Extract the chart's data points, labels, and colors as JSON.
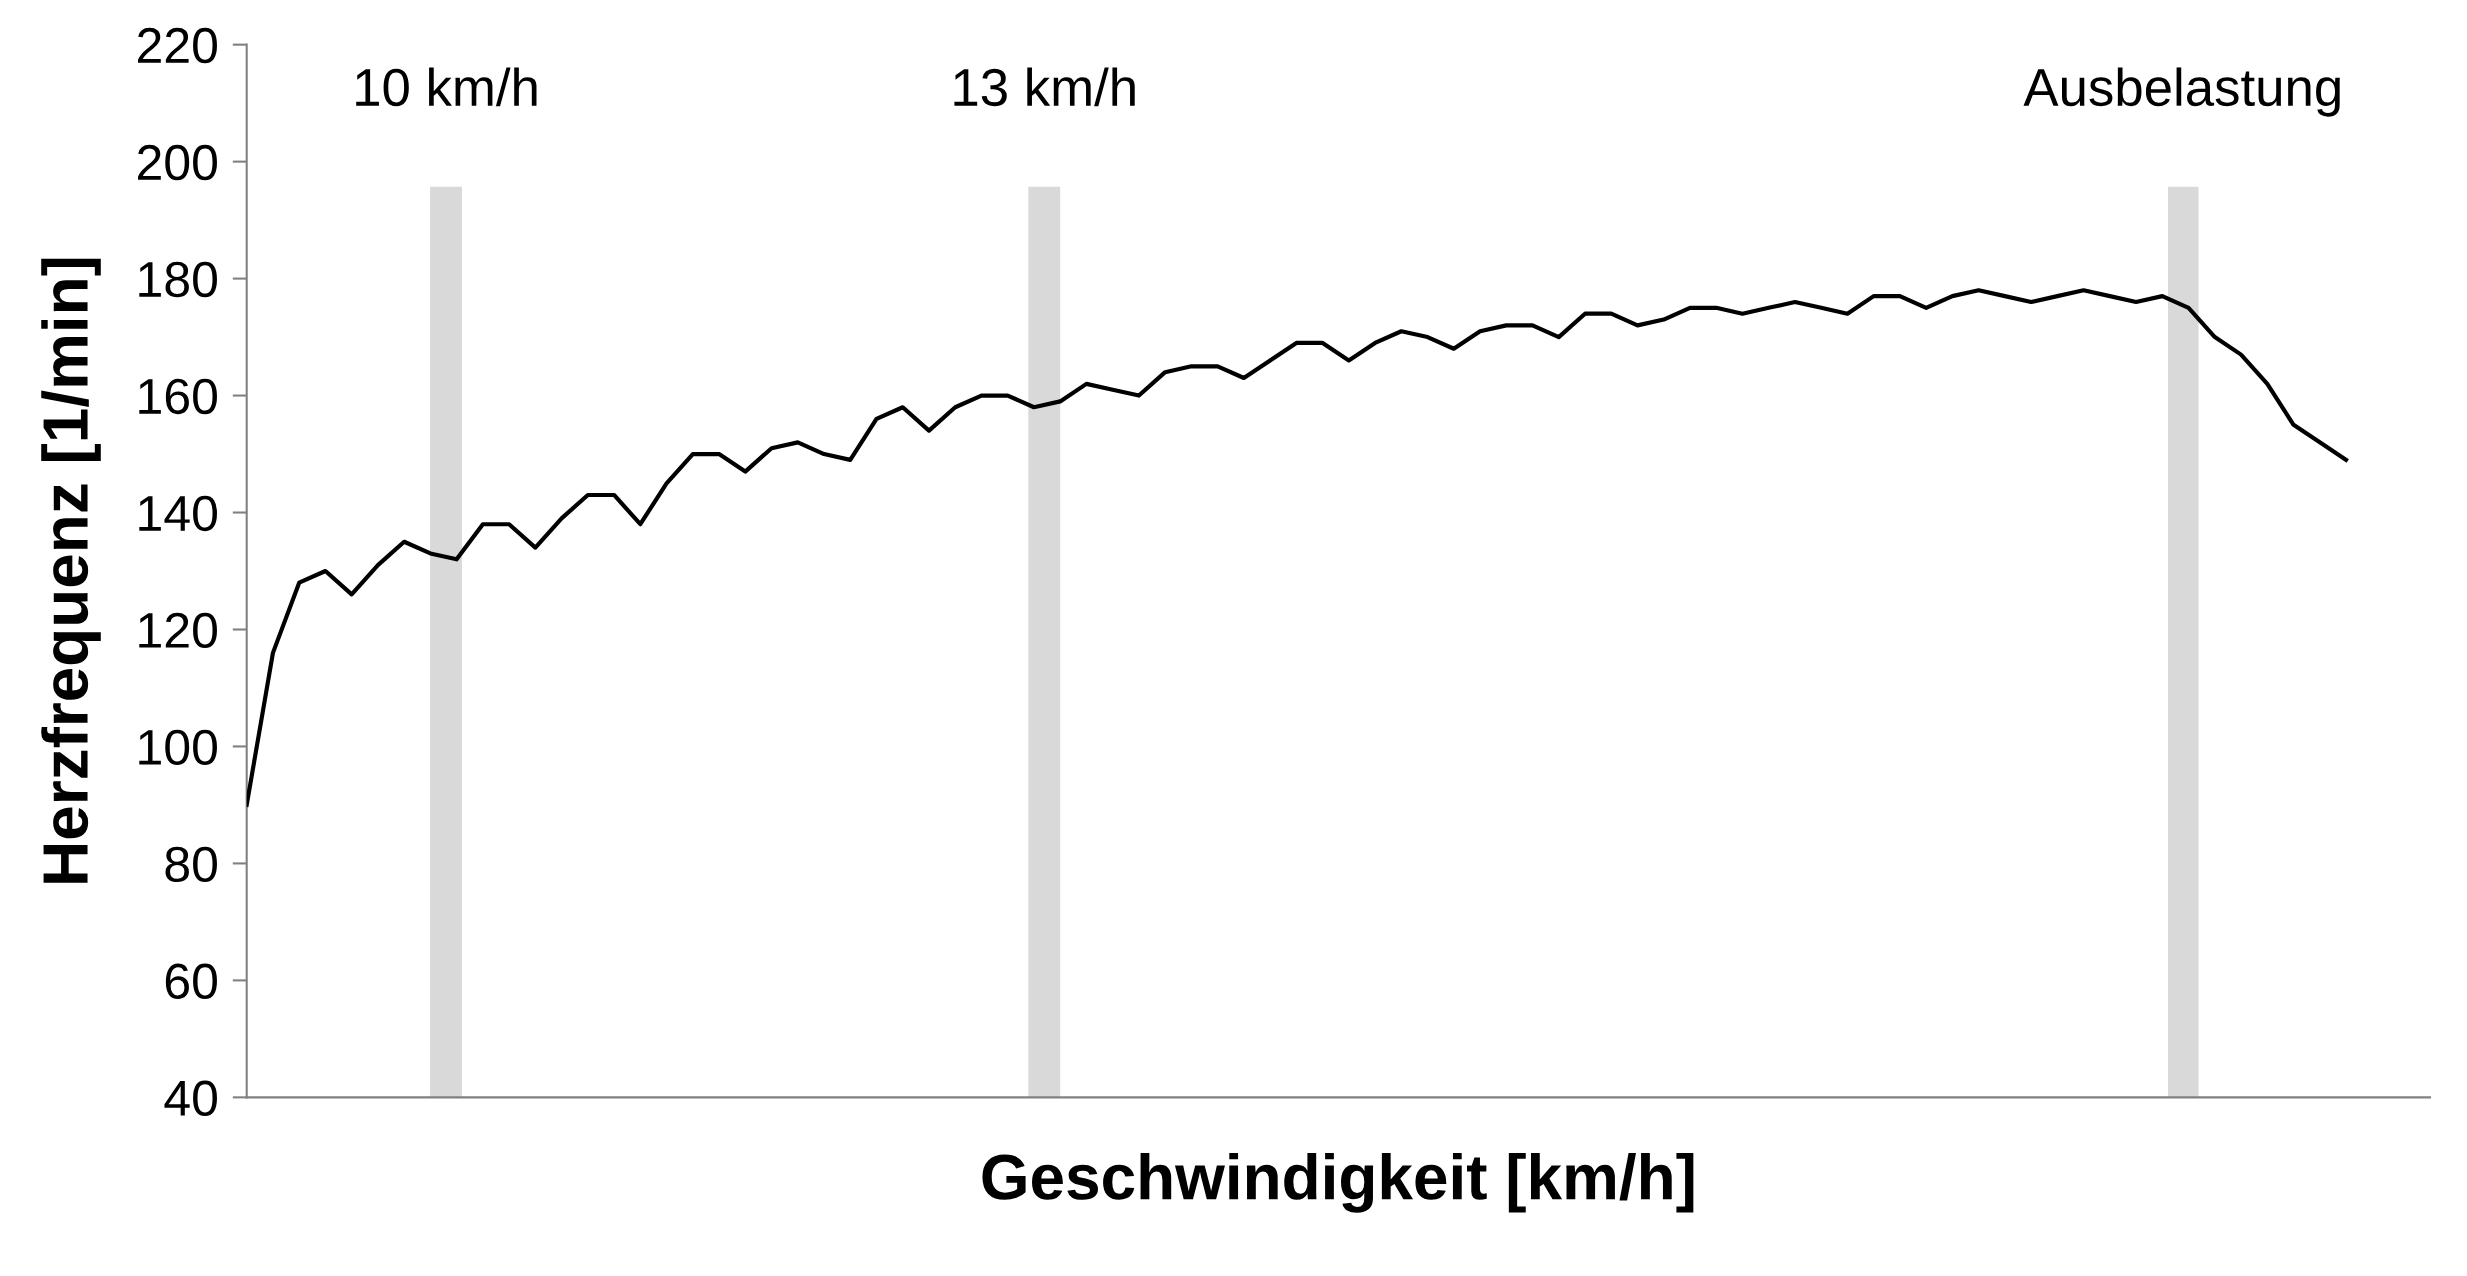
{
  "chart_data": {
    "type": "line",
    "xlabel": "Geschwindigkeit [km/h]",
    "ylabel": "Herzfrequenz [1/min]",
    "categories": [
      null,
      null,
      null,
      null,
      null,
      null,
      null,
      null,
      null,
      null,
      null,
      null,
      null,
      null,
      null,
      null,
      null,
      null,
      null,
      null,
      null,
      null,
      null,
      null,
      null,
      null,
      null,
      null,
      null,
      null,
      null,
      null,
      null,
      null,
      null,
      null,
      null,
      null,
      null,
      null,
      null,
      null,
      null,
      null,
      null,
      null,
      null,
      null,
      null,
      null,
      null,
      null,
      null,
      null,
      null,
      null,
      null,
      null,
      null,
      null,
      null,
      null,
      null,
      null,
      null,
      null,
      null,
      null,
      null,
      null,
      null,
      null,
      null,
      null,
      null,
      null,
      null,
      null,
      null,
      null,
      null
    ],
    "series": [
      {
        "color": "#000000",
        "values": [
          90,
          116,
          128,
          130,
          126,
          131,
          135,
          133,
          132,
          138,
          138,
          134,
          139,
          143,
          143,
          138,
          145,
          150,
          150,
          147,
          151,
          152,
          150,
          149,
          156,
          158,
          154,
          158,
          160,
          160,
          158,
          159,
          162,
          161,
          160,
          164,
          165,
          165,
          163,
          166,
          169,
          169,
          166,
          169,
          171,
          170,
          168,
          171,
          172,
          172,
          170,
          174,
          174,
          172,
          173,
          175,
          175,
          174,
          175,
          176,
          175,
          174,
          177,
          177,
          175,
          177,
          178,
          177,
          176,
          177,
          178,
          177,
          176,
          177,
          175,
          170,
          167,
          162,
          155,
          152,
          149
        ]
      }
    ],
    "ylim": [
      40,
      220
    ],
    "yticks": [
      40,
      60,
      80,
      100,
      120,
      140,
      160,
      180,
      200,
      220
    ],
    "annotations": [
      "10 km/h",
      "13 km/h",
      "Ausbelastung"
    ],
    "grid": false,
    "legend": false,
    "marker": "none",
    "line_style": "solid"
  }
}
